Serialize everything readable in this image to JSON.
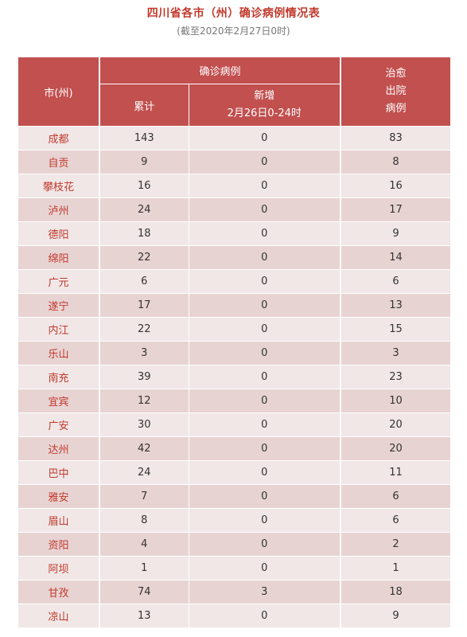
{
  "title": "四川省各市（州）确诊病例情况表",
  "subtitle": "(截至2020年2月27日0时)",
  "header": {
    "city": "市(州)",
    "confirmed_group": "确诊病例",
    "cumulative": "累计",
    "new_line1": "新增",
    "new_line2": "2月26日0-24时",
    "recovered_line1": "治愈",
    "recovered_line2": "出院",
    "recovered_line3": "病例"
  },
  "rows": [
    {
      "city": "成都",
      "total": "143",
      "new": "0",
      "recovered": "83"
    },
    {
      "city": "自贡",
      "total": "9",
      "new": "0",
      "recovered": "8"
    },
    {
      "city": "攀枝花",
      "total": "16",
      "new": "0",
      "recovered": "16"
    },
    {
      "city": "泸州",
      "total": "24",
      "new": "0",
      "recovered": "17"
    },
    {
      "city": "德阳",
      "total": "18",
      "new": "0",
      "recovered": "9"
    },
    {
      "city": "绵阳",
      "total": "22",
      "new": "0",
      "recovered": "14"
    },
    {
      "city": "广元",
      "total": "6",
      "new": "0",
      "recovered": "6"
    },
    {
      "city": "遂宁",
      "total": "17",
      "new": "0",
      "recovered": "13"
    },
    {
      "city": "内江",
      "total": "22",
      "new": "0",
      "recovered": "15"
    },
    {
      "city": "乐山",
      "total": "3",
      "new": "0",
      "recovered": "3"
    },
    {
      "city": "南充",
      "total": "39",
      "new": "0",
      "recovered": "23"
    },
    {
      "city": "宜宾",
      "total": "12",
      "new": "0",
      "recovered": "10"
    },
    {
      "city": "广安",
      "total": "30",
      "new": "0",
      "recovered": "20"
    },
    {
      "city": "达州",
      "total": "42",
      "new": "0",
      "recovered": "20"
    },
    {
      "city": "巴中",
      "total": "24",
      "new": "0",
      "recovered": "11"
    },
    {
      "city": "雅安",
      "total": "7",
      "new": "0",
      "recovered": "6"
    },
    {
      "city": "眉山",
      "total": "8",
      "new": "0",
      "recovered": "6"
    },
    {
      "city": "资阳",
      "total": "4",
      "new": "0",
      "recovered": "2"
    },
    {
      "city": "阿坝",
      "total": "1",
      "new": "0",
      "recovered": "1"
    },
    {
      "city": "甘孜",
      "total": "74",
      "new": "3",
      "recovered": "18"
    },
    {
      "city": "凉山",
      "total": "13",
      "new": "0",
      "recovered": "9"
    }
  ]
}
